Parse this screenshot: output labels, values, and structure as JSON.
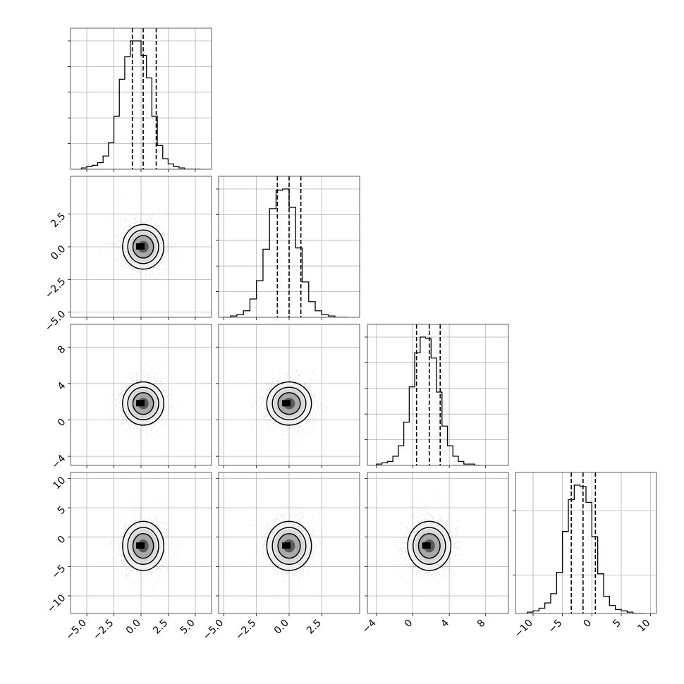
{
  "chart_data": {
    "type": "corner",
    "dimensions": 4,
    "grid": true,
    "params": [
      {
        "range": [
          -6.5,
          6.5
        ],
        "ticks": [
          -5.0,
          -2.5,
          0.0,
          2.5,
          5.0
        ],
        "tick_labels": [
          "−5.0",
          "−2.5",
          "0.0",
          "2.5",
          "5.0"
        ],
        "mean": 0.2,
        "sigma": 1.0,
        "quantiles": [
          -0.8,
          0.2,
          1.4
        ],
        "bin_edges": [
          -5.5,
          -5.0,
          -4.5,
          -4.0,
          -3.5,
          -3.0,
          -2.5,
          -2.0,
          -1.5,
          -1.0,
          -0.5,
          0.0,
          0.5,
          1.0,
          1.5,
          2.0,
          2.5,
          3.0,
          3.5,
          4.0,
          4.5,
          5.0,
          5.5
        ],
        "hist": [
          0.01,
          0.02,
          0.03,
          0.05,
          0.1,
          0.2,
          0.4,
          0.68,
          0.85,
          0.97,
          0.97,
          0.86,
          0.69,
          0.4,
          0.18,
          0.08,
          0.04,
          0.02,
          0.01,
          0.0,
          0.0,
          0.0
        ],
        "hist_ticks": [
          0.2,
          0.4,
          0.6,
          0.8,
          1.0
        ]
      },
      {
        "range": [
          -5.4,
          5.4
        ],
        "ticks": [
          -5.0,
          -2.5,
          0.0,
          2.5
        ],
        "tick_labels": [
          "−5.0",
          "−2.5",
          "0.0",
          "2.5"
        ],
        "mean": 0.0,
        "sigma": 0.9,
        "quantiles": [
          -0.9,
          0.0,
          0.9
        ],
        "bin_edges": [
          -5.0,
          -4.5,
          -4.0,
          -3.5,
          -3.0,
          -2.5,
          -2.0,
          -1.5,
          -1.0,
          -0.5,
          0.0,
          0.5,
          1.0,
          1.5,
          2.0,
          2.5,
          3.0,
          3.5,
          4.0,
          4.5
        ],
        "hist": [
          0.0,
          0.01,
          0.02,
          0.05,
          0.14,
          0.28,
          0.52,
          0.83,
          0.97,
          0.98,
          0.84,
          0.53,
          0.27,
          0.12,
          0.05,
          0.02,
          0.01,
          0.0,
          0.0
        ],
        "hist_ticks": [
          0.2,
          0.4,
          0.6,
          0.8,
          1.0
        ]
      },
      {
        "range": [
          -5.0,
          10.5
        ],
        "ticks": [
          -4,
          0,
          4,
          8
        ],
        "tick_labels": [
          "−4",
          "0",
          "4",
          "8"
        ],
        "mean": 1.8,
        "sigma": 1.25,
        "quantiles": [
          0.4,
          1.8,
          3.0
        ],
        "bin_edges": [
          -4.0,
          -3.4,
          -2.8,
          -2.2,
          -1.6,
          -1.0,
          -0.4,
          0.2,
          0.8,
          1.4,
          2.0,
          2.6,
          3.2,
          3.8,
          4.4,
          5.0,
          5.6,
          6.2,
          6.8,
          7.4
        ],
        "hist": [
          0.01,
          0.02,
          0.03,
          0.07,
          0.15,
          0.33,
          0.6,
          0.86,
          0.98,
          0.97,
          0.82,
          0.56,
          0.3,
          0.15,
          0.07,
          0.03,
          0.01,
          0.01,
          0.0
        ],
        "hist_ticks": [
          0.2,
          0.4,
          0.6,
          0.8,
          1.0
        ]
      },
      {
        "range": [
          -13.0,
          11.0
        ],
        "ticks": [
          -10,
          -5,
          0,
          5,
          10
        ],
        "tick_labels": [
          "−10",
          "−5",
          "0",
          "5",
          "10"
        ],
        "mean": -1.5,
        "sigma": 2.2,
        "quantiles": [
          -3.5,
          -1.5,
          0.6
        ],
        "bin_edges": [
          -11.0,
          -10.0,
          -9.0,
          -8.0,
          -7.0,
          -6.0,
          -5.0,
          -4.0,
          -3.0,
          -2.0,
          -1.0,
          0.0,
          1.0,
          2.0,
          3.0,
          4.0,
          5.0,
          6.0,
          7.0,
          8.0,
          9.0
        ],
        "hist": [
          0.01,
          0.02,
          0.04,
          0.08,
          0.15,
          0.31,
          0.62,
          0.86,
          0.97,
          0.96,
          0.84,
          0.58,
          0.3,
          0.13,
          0.06,
          0.03,
          0.02,
          0.01,
          0.0,
          0.0
        ],
        "hist_ticks": [
          0.3,
          0.8
        ]
      }
    ],
    "contour_levels_sigma": [
      0.5,
      1.0,
      1.5,
      2.0
    ],
    "scatter": {
      "point_color": "#000000",
      "point_opacity": 0.12
    }
  },
  "colors": {
    "line": "#000000",
    "grid": "#b0b0b0",
    "density_dark": "#000000",
    "density_light": "#e8e8e8"
  }
}
